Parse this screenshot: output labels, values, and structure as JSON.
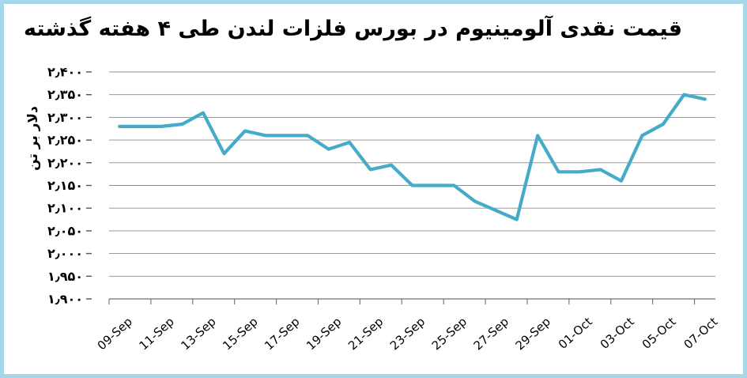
{
  "chart": {
    "title": "قیمت نقدی آلومینیوم در بورس فلزات لندن طی ۴ هفته گذشته",
    "y_axis_title": "دلار بر تن"
  },
  "colors": {
    "line": "#46abc8",
    "gridline": "#8c8c8c",
    "axis": "#707070",
    "tick": "#555555",
    "frame_border": "#a7d8e9",
    "text": "#000000"
  },
  "chart_data": {
    "type": "line",
    "title": "قیمت نقدی آلومینیوم در بورس فلزات لندن طی ۴ هفته گذشته",
    "ylabel": "دلار بر تن",
    "xlabel": "",
    "ylim": [
      1900,
      2400
    ],
    "y_tick_step": 50,
    "grid": "horizontal",
    "legend": "none",
    "categories": [
      "09-Sep",
      "10-Sep",
      "11-Sep",
      "12-Sep",
      "13-Sep",
      "14-Sep",
      "15-Sep",
      "16-Sep",
      "17-Sep",
      "18-Sep",
      "19-Sep",
      "20-Sep",
      "21-Sep",
      "22-Sep",
      "23-Sep",
      "24-Sep",
      "25-Sep",
      "26-Sep",
      "27-Sep",
      "28-Sep",
      "29-Sep",
      "30-Sep",
      "01-Oct",
      "02-Oct",
      "03-Oct",
      "04-Oct",
      "05-Oct",
      "06-Oct",
      "07-Oct"
    ],
    "values": [
      2280,
      2280,
      2280,
      2285,
      2310,
      2220,
      2270,
      2260,
      2260,
      2260,
      2230,
      2245,
      2185,
      2195,
      2150,
      2150,
      2150,
      2115,
      2095,
      2075,
      2260,
      2180,
      2180,
      2185,
      2160,
      2260,
      2285,
      2350,
      2340
    ],
    "x_tick_label_interval": 2,
    "x_tick_labels_shown": [
      "09-Sep",
      "11-Sep",
      "13-Sep",
      "15-Sep",
      "17-Sep",
      "19-Sep",
      "21-Sep",
      "23-Sep",
      "25-Sep",
      "27-Sep",
      "29-Sep",
      "01-Oct",
      "03-Oct",
      "05-Oct",
      "07-Oct"
    ],
    "y_ticks": [
      {
        "v": 2400,
        "label": "۲٫۴۰۰"
      },
      {
        "v": 2350,
        "label": "۲٫۳۵۰"
      },
      {
        "v": 2300,
        "label": "۲٫۳۰۰"
      },
      {
        "v": 2250,
        "label": "۲٫۲۵۰"
      },
      {
        "v": 2200,
        "label": "۲٫۲۰۰"
      },
      {
        "v": 2150,
        "label": "۲٫۱۵۰"
      },
      {
        "v": 2100,
        "label": "۲٫۱۰۰"
      },
      {
        "v": 2050,
        "label": "۲٫۰۵۰"
      },
      {
        "v": 2000,
        "label": "۲٫۰۰۰"
      },
      {
        "v": 1950,
        "label": "۱٫۹۵۰"
      },
      {
        "v": 1900,
        "label": "۱٫۹۰۰"
      }
    ]
  }
}
